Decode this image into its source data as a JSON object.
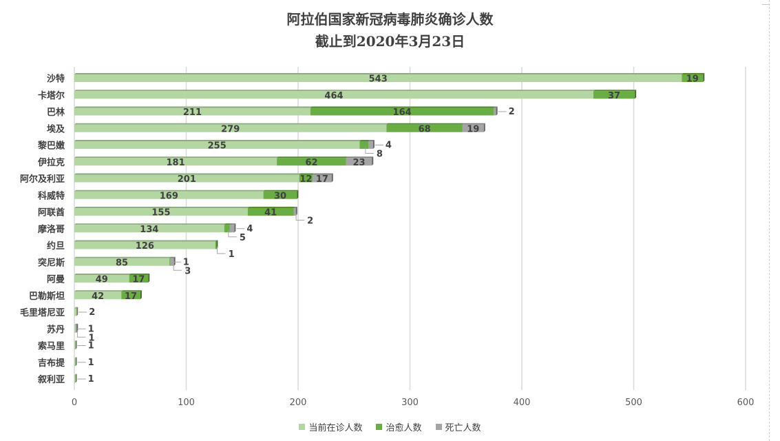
{
  "chart_data": {
    "type": "bar",
    "orientation": "horizontal",
    "stacked": true,
    "title": "阿拉伯国家新冠病毒肺炎确诊人数",
    "subtitle": "截止到2020年3月23日",
    "categories": [
      "沙特",
      "卡塔尔",
      "巴林",
      "埃及",
      "黎巴嫩",
      "伊拉克",
      "阿尔及利亚",
      "科威特",
      "阿联酋",
      "摩洛哥",
      "约旦",
      "突尼斯",
      "阿曼",
      "巴勒斯坦",
      "毛里塔尼亚",
      "苏丹",
      "索马里",
      "吉布提",
      "叙利亚"
    ],
    "series": [
      {
        "name": "当前在诊人数",
        "color": "#b4d6a2",
        "values": [
          543,
          464,
          211,
          279,
          255,
          181,
          201,
          169,
          155,
          134,
          126,
          85,
          49,
          42,
          2,
          1,
          1,
          1,
          1
        ]
      },
      {
        "name": "治愈人数",
        "color": "#6aad45",
        "values": [
          19,
          37,
          164,
          68,
          8,
          62,
          12,
          30,
          41,
          5,
          1,
          1,
          17,
          17,
          0,
          0,
          0,
          0,
          0
        ]
      },
      {
        "name": "死亡人数",
        "color": "#a5a5a5",
        "values": [
          0,
          0,
          2,
          19,
          4,
          23,
          17,
          0,
          2,
          4,
          0,
          3,
          0,
          0,
          0,
          1,
          0,
          0,
          0
        ]
      }
    ],
    "xlim": [
      0,
      600
    ],
    "xticks": [
      0,
      100,
      200,
      300,
      400,
      500,
      600
    ],
    "grid": true,
    "legend_position": "bottom",
    "data_labels": [
      {
        "category": "沙特",
        "labels": [
          {
            "text": "543",
            "series": 0,
            "placement": "inside"
          },
          {
            "text": "19",
            "series": 1,
            "placement": "inside"
          }
        ]
      },
      {
        "category": "卡塔尔",
        "labels": [
          {
            "text": "464",
            "series": 0,
            "placement": "inside"
          },
          {
            "text": "37",
            "series": 1,
            "placement": "inside"
          }
        ]
      },
      {
        "category": "巴林",
        "labels": [
          {
            "text": "211",
            "series": 0,
            "placement": "inside"
          },
          {
            "text": "164",
            "series": 1,
            "placement": "inside"
          },
          {
            "text": "2",
            "series": 2,
            "placement": "callout",
            "side": "right"
          }
        ]
      },
      {
        "category": "埃及",
        "labels": [
          {
            "text": "279",
            "series": 0,
            "placement": "inside"
          },
          {
            "text": "68",
            "series": 1,
            "placement": "inside"
          },
          {
            "text": "19",
            "series": 2,
            "placement": "inside"
          }
        ]
      },
      {
        "category": "黎巴嫩",
        "labels": [
          {
            "text": "255",
            "series": 0,
            "placement": "inside"
          },
          {
            "text": "4",
            "series": 2,
            "placement": "callout",
            "side": "right"
          },
          {
            "text": "8",
            "series": 1,
            "placement": "callout",
            "side": "below"
          }
        ]
      },
      {
        "category": "伊拉克",
        "labels": [
          {
            "text": "181",
            "series": 0,
            "placement": "inside"
          },
          {
            "text": "62",
            "series": 1,
            "placement": "inside"
          },
          {
            "text": "23",
            "series": 2,
            "placement": "inside"
          }
        ]
      },
      {
        "category": "阿尔及利亚",
        "labels": [
          {
            "text": "201",
            "series": 0,
            "placement": "inside"
          },
          {
            "text": "12",
            "series": 1,
            "placement": "inside"
          },
          {
            "text": "17",
            "series": 2,
            "placement": "inside"
          }
        ]
      },
      {
        "category": "科威特",
        "labels": [
          {
            "text": "169",
            "series": 0,
            "placement": "inside"
          },
          {
            "text": "30",
            "series": 1,
            "placement": "inside"
          }
        ]
      },
      {
        "category": "阿联酋",
        "labels": [
          {
            "text": "155",
            "series": 0,
            "placement": "inside"
          },
          {
            "text": "41",
            "series": 1,
            "placement": "inside"
          },
          {
            "text": "2",
            "series": 2,
            "placement": "callout",
            "side": "below"
          }
        ]
      },
      {
        "category": "摩洛哥",
        "labels": [
          {
            "text": "134",
            "series": 0,
            "placement": "inside"
          },
          {
            "text": "4",
            "series": 2,
            "placement": "callout",
            "side": "right"
          },
          {
            "text": "5",
            "series": 1,
            "placement": "callout",
            "side": "below"
          }
        ]
      },
      {
        "category": "约旦",
        "labels": [
          {
            "text": "126",
            "series": 0,
            "placement": "inside"
          },
          {
            "text": "1",
            "series": 1,
            "placement": "callout",
            "side": "below"
          }
        ]
      },
      {
        "category": "突尼斯",
        "labels": [
          {
            "text": "85",
            "series": 0,
            "placement": "inside"
          },
          {
            "text": "1",
            "series": 1,
            "placement": "callout",
            "side": "right"
          },
          {
            "text": "3",
            "series": 2,
            "placement": "callout",
            "side": "below"
          }
        ]
      },
      {
        "category": "阿曼",
        "labels": [
          {
            "text": "49",
            "series": 0,
            "placement": "inside"
          },
          {
            "text": "17",
            "series": 1,
            "placement": "inside"
          }
        ]
      },
      {
        "category": "巴勒斯坦",
        "labels": [
          {
            "text": "42",
            "series": 0,
            "placement": "inside"
          },
          {
            "text": "17",
            "series": 1,
            "placement": "inside"
          }
        ]
      },
      {
        "category": "毛里塔尼亚",
        "labels": [
          {
            "text": "2",
            "series": 0,
            "placement": "callout",
            "side": "right"
          }
        ]
      },
      {
        "category": "苏丹",
        "labels": [
          {
            "text": "1",
            "series": 0,
            "placement": "callout",
            "side": "right"
          },
          {
            "text": "1",
            "series": 2,
            "placement": "callout",
            "side": "below"
          }
        ]
      },
      {
        "category": "索马里",
        "labels": [
          {
            "text": "1",
            "series": 0,
            "placement": "callout",
            "side": "right"
          }
        ]
      },
      {
        "category": "吉布提",
        "labels": [
          {
            "text": "1",
            "series": 0,
            "placement": "callout",
            "side": "right"
          }
        ]
      },
      {
        "category": "叙利亚",
        "labels": [
          {
            "text": "1",
            "series": 0,
            "placement": "callout",
            "side": "right"
          }
        ]
      }
    ]
  }
}
